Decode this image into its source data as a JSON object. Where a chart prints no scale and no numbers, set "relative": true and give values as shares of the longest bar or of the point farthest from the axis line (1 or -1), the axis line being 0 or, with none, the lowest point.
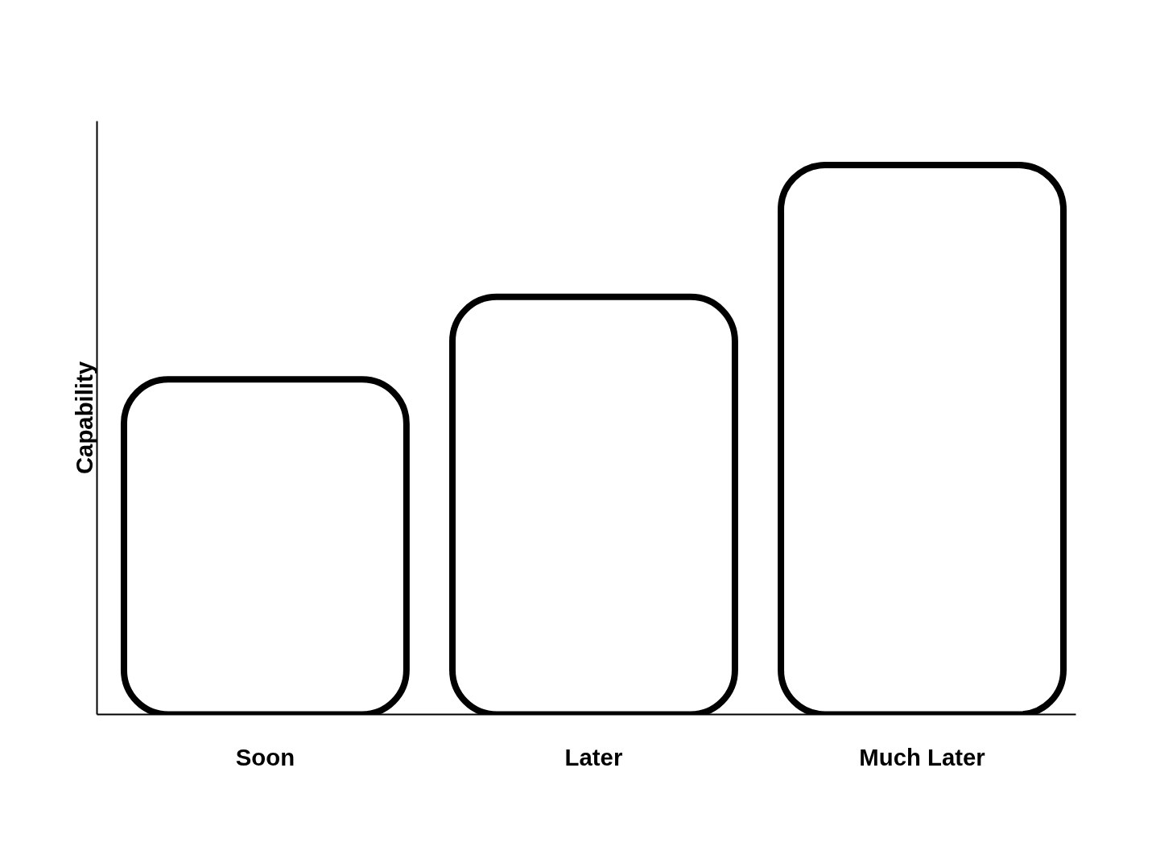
{
  "chart_data": {
    "type": "bar",
    "ylabel": "Capability",
    "relative": true,
    "categories": [
      "Soon",
      "Later",
      "Much Later"
    ],
    "values": [
      0.61,
      0.76,
      1
    ],
    "color": "#ffffff",
    "grid": false
  }
}
